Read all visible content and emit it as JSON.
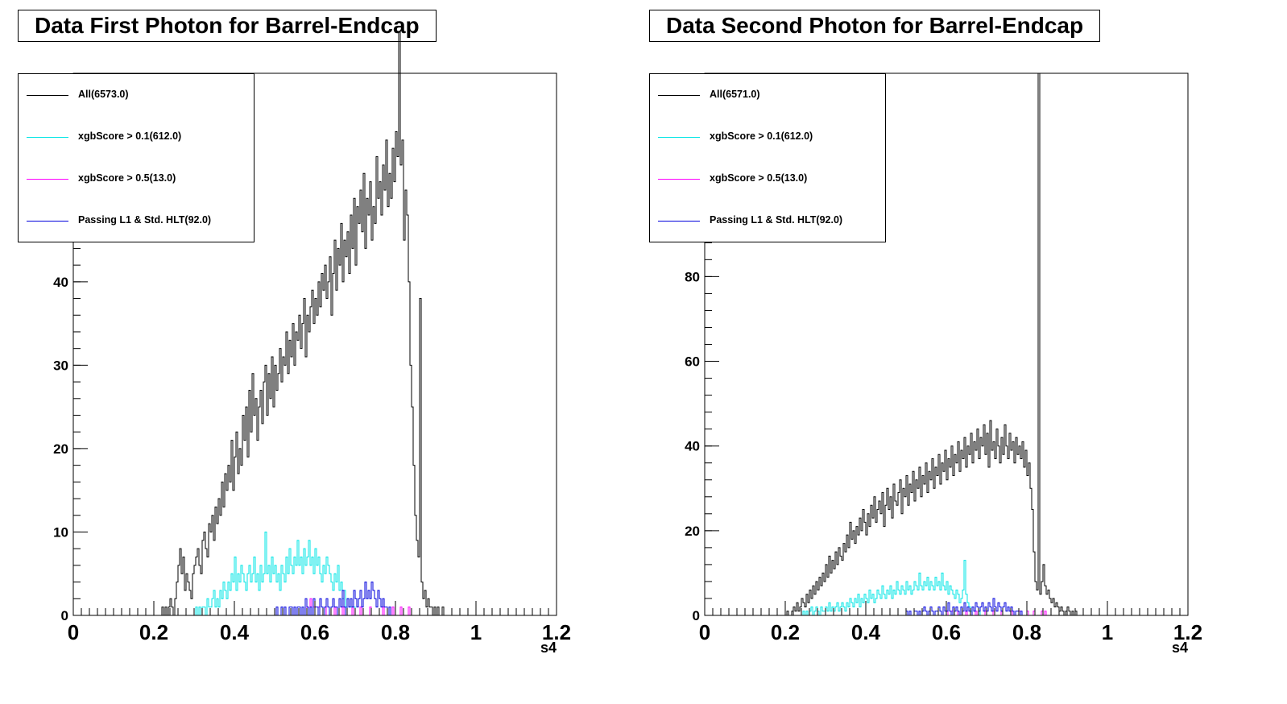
{
  "chart_data": [
    {
      "type": "line",
      "title": "Data First Photon for Barrel-Endcap",
      "xlabel": "s4",
      "ylabel": "",
      "xlim": [
        0,
        1.2
      ],
      "ylim": [
        0,
        65
      ],
      "x_ticks": [
        "0",
        "0.2",
        "0.4",
        "0.6",
        "0.8",
        "1",
        "1.2"
      ],
      "y_ticks": [
        "0",
        "10",
        "20",
        "30",
        "40",
        "50"
      ],
      "legend_position": "top-left",
      "bin_width": 0.004,
      "series": [
        {
          "name": "All(6573.0)",
          "color": "#000000",
          "x_start": 0.22,
          "values": [
            1,
            0,
            1,
            0,
            1,
            2,
            1,
            0,
            2,
            4,
            6,
            8,
            5,
            7,
            3,
            5,
            4,
            3,
            2,
            5,
            6,
            7,
            8,
            6,
            5,
            9,
            10,
            8,
            7,
            11,
            10,
            12,
            9,
            13,
            11,
            14,
            12,
            16,
            13,
            17,
            15,
            18,
            16,
            21,
            15,
            19,
            22,
            17,
            20,
            18,
            24,
            21,
            25,
            19,
            27,
            22,
            29,
            24,
            26,
            21,
            25,
            27,
            23,
            28,
            30,
            24,
            29,
            26,
            31,
            25,
            30,
            27,
            29,
            32,
            28,
            31,
            30,
            34,
            29,
            33,
            31,
            35,
            30,
            34,
            33,
            36,
            32,
            35,
            38,
            31,
            36,
            34,
            37,
            39,
            35,
            38,
            36,
            40,
            37,
            41,
            39,
            42,
            38,
            40,
            43,
            36,
            41,
            45,
            39,
            44,
            42,
            47,
            40,
            45,
            43,
            46,
            41,
            48,
            44,
            50,
            42,
            49,
            47,
            51,
            46,
            53,
            44,
            50,
            48,
            52,
            45,
            49,
            47,
            55,
            50,
            52,
            48,
            54,
            51,
            57,
            49,
            53,
            50,
            56,
            52,
            58,
            55,
            70,
            54,
            57,
            45,
            51,
            48,
            40,
            30,
            25,
            18,
            12,
            9,
            7,
            38,
            4,
            2,
            3,
            1,
            2,
            1,
            1,
            0,
            1,
            0,
            1,
            0,
            0,
            1
          ]
        },
        {
          "name": "xgbScore > 0.1(612.0)",
          "color": "#00e5e5",
          "x_start": 0.3,
          "values": [
            0,
            1,
            0,
            1,
            0,
            1,
            1,
            0,
            2,
            1,
            1,
            2,
            3,
            1,
            2,
            1,
            3,
            2,
            4,
            3,
            2,
            4,
            3,
            5,
            4,
            7,
            3,
            5,
            4,
            6,
            5,
            4,
            3,
            5,
            6,
            4,
            5,
            7,
            4,
            5,
            3,
            6,
            4,
            5,
            10,
            5,
            6,
            4,
            7,
            5,
            6,
            4,
            5,
            3,
            6,
            5,
            4,
            7,
            5,
            8,
            6,
            5,
            7,
            6,
            9,
            6,
            7,
            5,
            8,
            6,
            7,
            9,
            6,
            7,
            5,
            8,
            6,
            7,
            5,
            4,
            6,
            5,
            7,
            6,
            5,
            4,
            3,
            5,
            4,
            6,
            3,
            4,
            2,
            3,
            1,
            2,
            1,
            1,
            0,
            1
          ]
        },
        {
          "name": "xgbScore > 0.5(13.0)",
          "color": "#ff00ff",
          "x_start": 0.58,
          "values": [
            1,
            0,
            2,
            0,
            1,
            0,
            0,
            1,
            0,
            0,
            0,
            1,
            0,
            0,
            0,
            0,
            0,
            1,
            0,
            0,
            0,
            0,
            1,
            0,
            0,
            0,
            0,
            0,
            1,
            0,
            0,
            0,
            0,
            1,
            0,
            0,
            0,
            0,
            0,
            1,
            0,
            0,
            0,
            0,
            0,
            0,
            0,
            1,
            0,
            0,
            0,
            0,
            0,
            1,
            0,
            0,
            0,
            0,
            1,
            0,
            0,
            0,
            0,
            1
          ]
        },
        {
          "name": "Passing L1 & Std. HLT(92.0)",
          "color": "#0000dd",
          "x_start": 0.5,
          "values": [
            0,
            1,
            0,
            0,
            1,
            0,
            1,
            0,
            0,
            1,
            1,
            0,
            1,
            0,
            1,
            1,
            0,
            1,
            0,
            2,
            1,
            0,
            1,
            0,
            2,
            1,
            1,
            0,
            2,
            1,
            0,
            1,
            2,
            1,
            0,
            1,
            2,
            1,
            1,
            0,
            2,
            1,
            3,
            1,
            0,
            2,
            1,
            2,
            1,
            3,
            2,
            1,
            2,
            3,
            1,
            2,
            4,
            2,
            3,
            2,
            4,
            3,
            2,
            1,
            3,
            2,
            1,
            2,
            1,
            1,
            0,
            1
          ]
        }
      ]
    },
    {
      "type": "line",
      "title": "Data Second Photon for Barrel-Endcap",
      "xlabel": "s4",
      "ylabel": "",
      "xlim": [
        0,
        1.2
      ],
      "ylim": [
        0,
        128
      ],
      "x_ticks": [
        "0",
        "0.2",
        "0.4",
        "0.6",
        "0.8",
        "1",
        "1.2"
      ],
      "y_ticks": [
        "0",
        "20",
        "40",
        "60",
        "80"
      ],
      "legend_position": "top-left",
      "bin_width": 0.004,
      "series": [
        {
          "name": "All(6571.0)",
          "color": "#000000",
          "x_start": 0.2,
          "values": [
            0,
            1,
            0,
            0,
            1,
            2,
            1,
            3,
            1,
            2,
            4,
            3,
            2,
            5,
            3,
            6,
            4,
            7,
            5,
            8,
            6,
            9,
            7,
            10,
            8,
            12,
            9,
            14,
            10,
            13,
            11,
            15,
            12,
            16,
            14,
            13,
            17,
            15,
            19,
            16,
            22,
            18,
            20,
            17,
            21,
            19,
            23,
            20,
            25,
            22,
            19,
            24,
            21,
            26,
            23,
            28,
            22,
            25,
            27,
            24,
            29,
            21,
            26,
            30,
            25,
            28,
            23,
            31,
            27,
            26,
            29,
            32,
            24,
            30,
            28,
            33,
            26,
            31,
            29,
            34,
            27,
            32,
            30,
            35,
            28,
            33,
            31,
            36,
            29,
            34,
            32,
            37,
            30,
            35,
            33,
            38,
            31,
            36,
            34,
            39,
            32,
            37,
            35,
            40,
            33,
            38,
            36,
            41,
            34,
            39,
            37,
            42,
            35,
            40,
            38,
            43,
            36,
            41,
            39,
            44,
            37,
            42,
            40,
            45,
            38,
            43,
            35,
            46,
            39,
            41,
            37,
            44,
            40,
            36,
            42,
            38,
            45,
            40,
            37,
            43,
            39,
            41,
            36,
            42,
            38,
            40,
            37,
            41,
            35,
            39,
            33,
            36,
            30,
            25,
            15,
            8,
            6,
            128,
            5,
            8,
            12,
            7,
            5,
            6,
            4,
            3,
            4,
            2,
            3,
            2,
            1,
            2,
            1,
            0,
            1,
            2,
            1,
            0,
            1,
            0,
            1
          ]
        },
        {
          "name": "xgbScore > 0.1(612.0)",
          "color": "#00e5e5",
          "x_start": 0.24,
          "values": [
            0,
            1,
            0,
            1,
            0,
            1,
            2,
            0,
            1,
            2,
            1,
            0,
            2,
            1,
            1,
            2,
            1,
            3,
            1,
            2,
            1,
            2,
            3,
            1,
            2,
            3,
            2,
            1,
            3,
            2,
            4,
            3,
            2,
            4,
            3,
            5,
            2,
            4,
            3,
            5,
            4,
            3,
            6,
            4,
            5,
            3,
            4,
            6,
            5,
            4,
            7,
            5,
            4,
            6,
            5,
            7,
            4,
            6,
            5,
            8,
            6,
            5,
            7,
            6,
            5,
            8,
            6,
            7,
            5,
            6,
            8,
            7,
            6,
            10,
            7,
            6,
            8,
            7,
            9,
            6,
            8,
            7,
            6,
            9,
            7,
            8,
            6,
            10,
            7,
            6,
            8,
            5,
            7,
            6,
            5,
            4,
            6,
            5,
            3,
            4,
            6,
            13,
            5,
            3,
            2,
            1,
            2,
            1,
            1,
            0,
            1
          ]
        },
        {
          "name": "xgbScore > 0.5(13.0)",
          "color": "#ff00ff",
          "x_start": 0.6,
          "values": [
            1,
            0,
            0,
            1,
            0,
            0,
            0,
            1,
            0,
            0,
            0,
            0,
            1,
            0,
            0,
            0,
            0,
            0,
            1,
            0,
            0,
            0,
            0,
            0,
            1,
            0,
            0,
            0,
            0,
            1,
            0,
            0,
            0,
            0,
            1,
            0,
            0,
            0,
            0,
            0,
            1,
            0,
            0,
            0,
            0,
            1,
            0,
            0,
            0,
            0,
            1,
            0,
            0,
            0,
            1,
            0,
            0,
            0,
            0,
            1,
            0,
            1
          ]
        },
        {
          "name": "Passing L1 & Std. HLT(92.0)",
          "color": "#0000dd",
          "x_start": 0.5,
          "values": [
            1,
            0,
            1,
            0,
            0,
            1,
            1,
            0,
            1,
            0,
            1,
            2,
            1,
            0,
            1,
            2,
            1,
            0,
            1,
            1,
            2,
            1,
            0,
            2,
            1,
            1,
            3,
            1,
            0,
            2,
            1,
            2,
            1,
            0,
            2,
            1,
            3,
            1,
            2,
            1,
            0,
            2,
            1,
            3,
            2,
            1,
            2,
            3,
            1,
            2,
            1,
            3,
            2,
            1,
            4,
            2,
            1,
            3,
            2,
            1,
            2,
            3,
            1,
            2,
            1,
            2,
            1,
            0,
            1,
            1,
            0,
            1
          ]
        }
      ]
    }
  ]
}
